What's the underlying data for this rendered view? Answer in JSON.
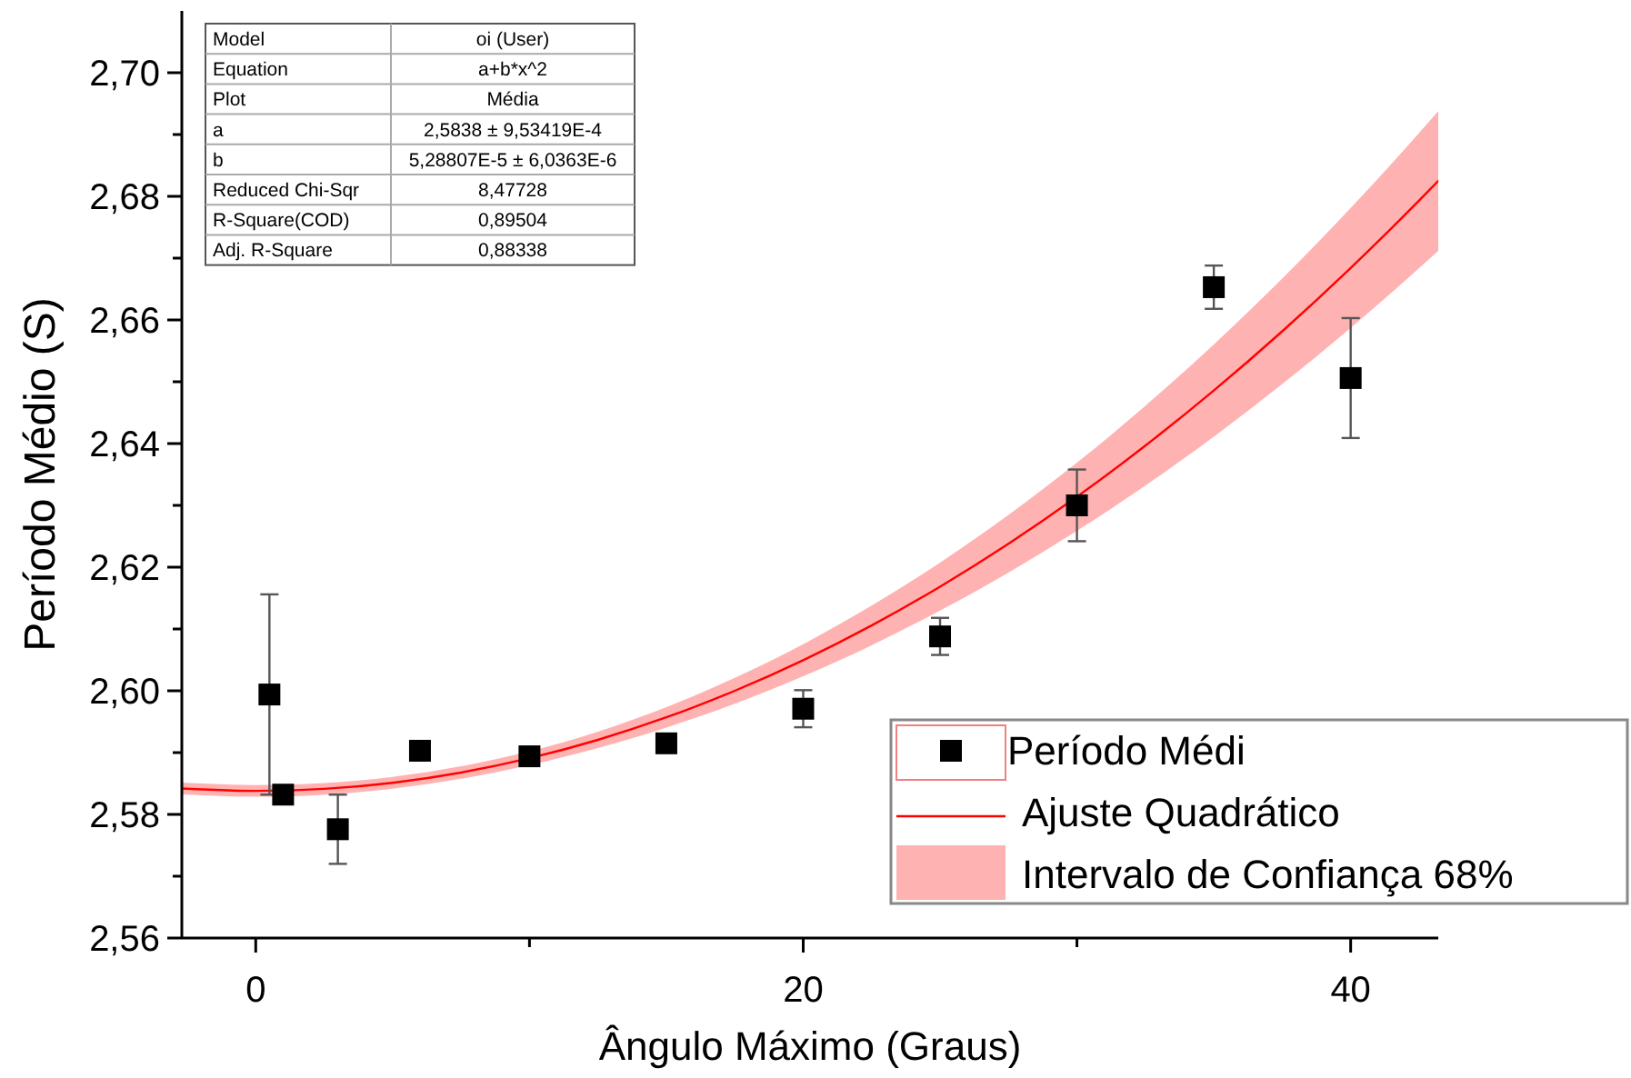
{
  "chart_data": {
    "type": "scatter",
    "xlabel": "Ângulo Máximo (Graus)",
    "ylabel": "Período Médio (S)",
    "xlim": [
      -2.7,
      43.2
    ],
    "ylim": [
      2.56,
      2.71
    ],
    "xticks": [
      0,
      {
        "value": 10,
        "label": null
      },
      20,
      {
        "value": 30,
        "label": null
      },
      40
    ],
    "yticks": [
      {
        "value": 2.56,
        "label": "2,56"
      },
      {
        "value": 2.57,
        "label": null
      },
      {
        "value": 2.58,
        "label": "2,58"
      },
      {
        "value": 2.59,
        "label": null
      },
      {
        "value": 2.6,
        "label": "2,60"
      },
      {
        "value": 2.61,
        "label": null
      },
      {
        "value": 2.62,
        "label": "2,62"
      },
      {
        "value": 2.63,
        "label": null
      },
      {
        "value": 2.64,
        "label": "2,64"
      },
      {
        "value": 2.65,
        "label": null
      },
      {
        "value": 2.66,
        "label": "2,66"
      },
      {
        "value": 2.67,
        "label": null
      },
      {
        "value": 2.68,
        "label": "2,68"
      },
      {
        "value": 2.69,
        "label": null
      },
      {
        "value": 2.7,
        "label": "2,70"
      }
    ],
    "legend": "bottom right",
    "marker": "square",
    "annotations": [
      "Model",
      "oi (User)",
      "Equation",
      "a+b*x^2",
      "Plot",
      "Média",
      "a",
      "2,5838 ± 9,53419E-4",
      "b",
      "5,28807E-5 ± 6,0363E-6",
      "Reduced Chi-Sqr",
      "8,47728",
      "R-Square(COD)",
      "0,89504",
      "Adj. R-Square",
      "0,88338",
      "Intervalo de Confiança 68%"
    ],
    "series": [
      {
        "type": "line",
        "name": "Ajuste Quadrático",
        "color": "#ff0000",
        "x": [
          -2.7,
          0,
          2.5,
          5,
          7.5,
          10,
          12.5,
          15,
          17.5,
          20,
          22.5,
          25,
          27.5,
          30,
          32.5,
          35,
          37.5,
          40,
          42.5,
          43.2
        ],
        "values": [
          2.58419,
          2.5838,
          2.58413,
          2.58512,
          2.58677,
          2.58909,
          2.59206,
          2.5957,
          2.6,
          2.60495,
          2.61057,
          2.61685,
          2.62379,
          2.63139,
          2.63966,
          2.64858,
          2.65816,
          2.66841,
          2.67932,
          2.68249
        ],
        "lower": [
          2.58324,
          2.58285,
          2.58318,
          2.58416,
          2.58576,
          2.58796,
          2.59072,
          2.59404,
          2.59792,
          2.60236,
          2.60737,
          2.61296,
          2.61913,
          2.62588,
          2.63321,
          2.64112,
          2.64962,
          2.65871,
          2.66838,
          2.67119
        ],
        "upper": [
          2.58514,
          2.58475,
          2.58508,
          2.58608,
          2.58778,
          2.59022,
          2.5934,
          2.59736,
          2.60208,
          2.60754,
          2.61377,
          2.62074,
          2.62845,
          2.6369,
          2.64611,
          2.65604,
          2.6667,
          2.67811,
          2.69026,
          2.69379
        ],
        "marker": "none"
      },
      {
        "name": "Período Médi",
        "color": "#000000",
        "x": [
          0.5,
          1,
          3,
          6,
          10,
          15,
          20,
          25,
          30,
          35,
          40
        ],
        "values": [
          2.5994,
          2.5832,
          2.5776,
          2.5903,
          2.5894,
          2.5915,
          2.5971,
          2.6088,
          2.63,
          2.6653,
          2.6506
        ],
        "errors": [
          0.0162,
          null,
          0.0056,
          null,
          null,
          null,
          0.003,
          0.003,
          0.0058,
          0.0035,
          0.0097
        ]
      }
    ]
  }
}
